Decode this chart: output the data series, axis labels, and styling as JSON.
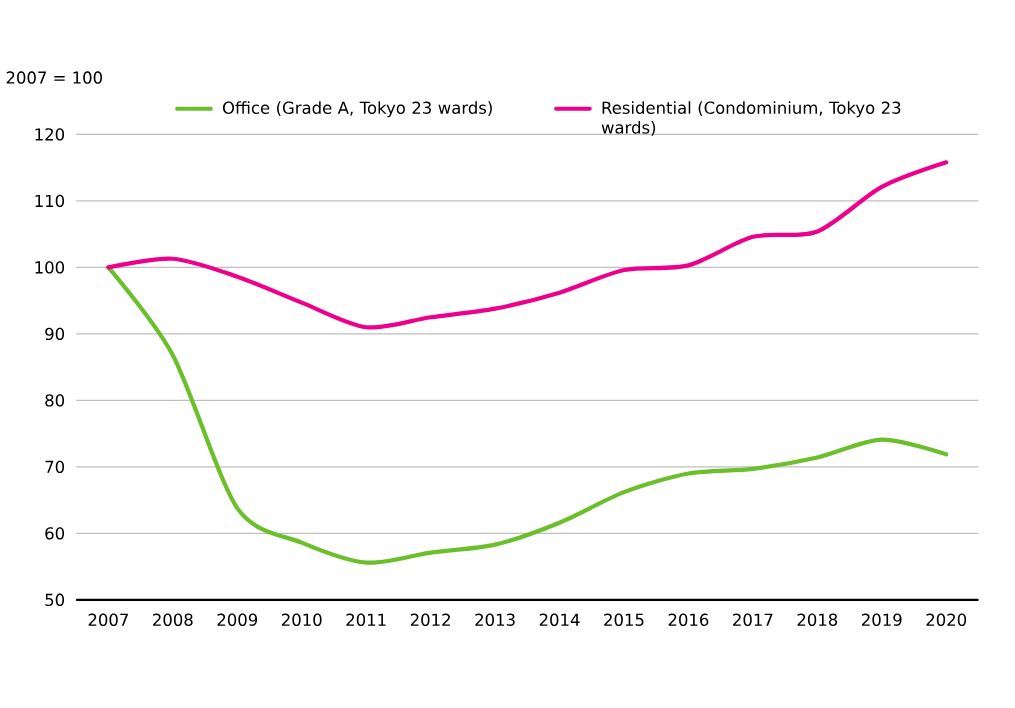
{
  "chart_data": {
    "type": "line",
    "ylabel": "2007 = 100",
    "categories": [
      "2007",
      "2008",
      "2009",
      "2010",
      "2011",
      "2012",
      "2013",
      "2014",
      "2015",
      "2016",
      "2017",
      "2018",
      "2019",
      "2020"
    ],
    "series": [
      {
        "name": "Office (Grade A, Tokyo 23 wards)",
        "color": "#6abf2a",
        "values": [
          100,
          86.8,
          63.8,
          58.6,
          55.6,
          57.1,
          58.3,
          61.6,
          66.2,
          69.0,
          69.7,
          71.4,
          74.1,
          71.9
        ]
      },
      {
        "name": "Residential (Condominium, Tokyo 23 wards)",
        "color": "#ec008c",
        "values": [
          100,
          101.3,
          98.6,
          94.7,
          91.0,
          92.5,
          93.8,
          96.2,
          99.6,
          100.3,
          104.6,
          105.4,
          112.1,
          115.8
        ]
      }
    ],
    "ylim": [
      50,
      120
    ],
    "yticks": [
      50,
      60,
      70,
      80,
      90,
      100,
      110,
      120
    ],
    "grid": "y",
    "legend": "top"
  }
}
